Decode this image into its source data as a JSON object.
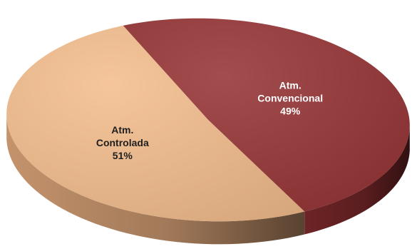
{
  "chart_data": {
    "type": "pie",
    "title": "",
    "style": "3d",
    "slices": [
      {
        "label_lines": [
          "Atm.",
          "Convencional"
        ],
        "value": 49,
        "value_text": "49%",
        "color": "#963436",
        "side_color": "#6e2426",
        "text_color": "#ffffff"
      },
      {
        "label_lines": [
          "Atm.",
          "Controlada"
        ],
        "value": 51,
        "value_text": "51%",
        "color": "#f4bd8d",
        "side_color": "#c4936c",
        "text_color": "#1f1f1f"
      }
    ]
  }
}
